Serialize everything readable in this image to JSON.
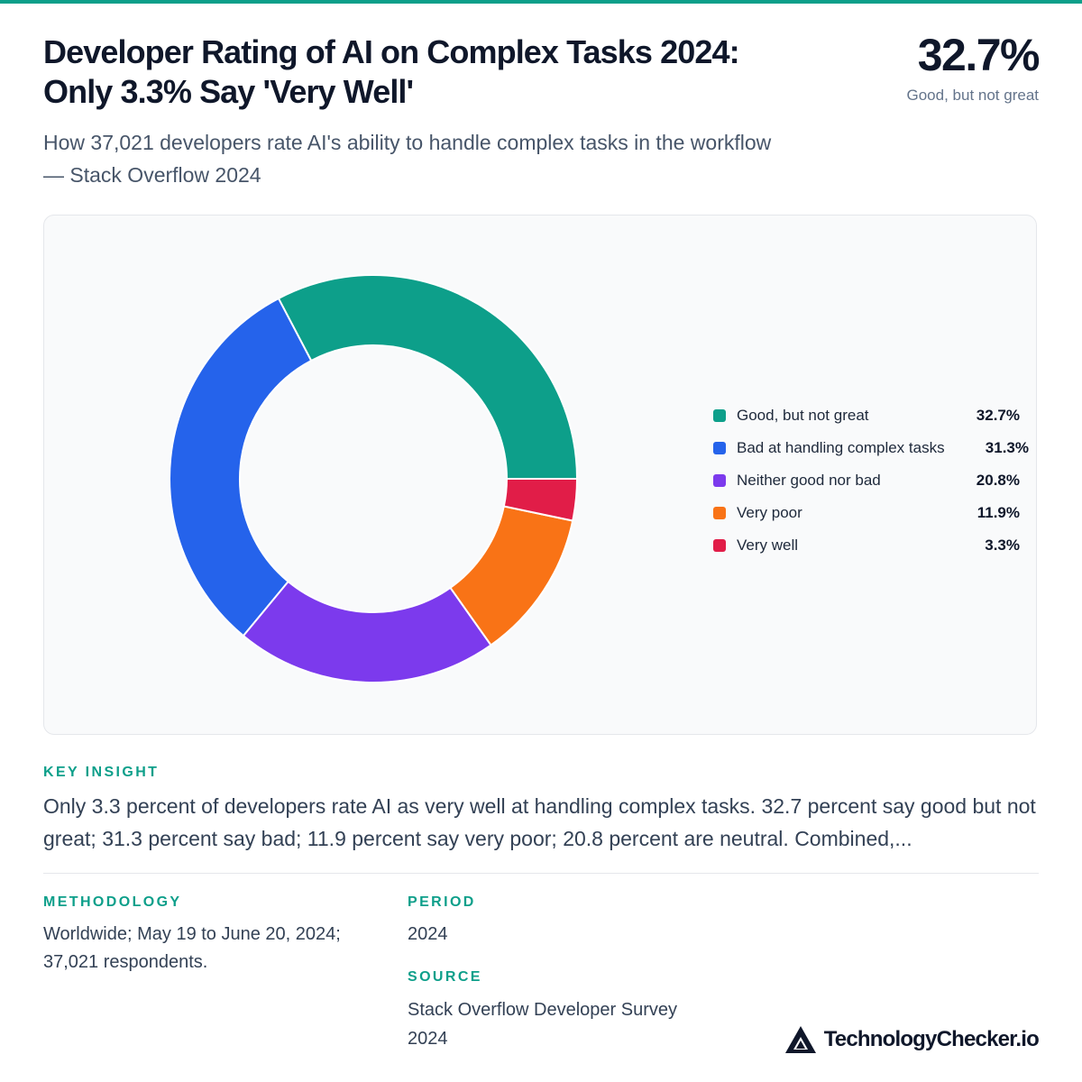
{
  "header": {
    "title_line1": "Developer Rating of AI on Complex Tasks 2024:",
    "title_line2": "Only 3.3% Say 'Very Well'",
    "subtitle": "How 37,021 developers rate AI's ability to handle complex tasks in the workflow — Stack Overflow 2024",
    "headline_value": "32.7%",
    "headline_label": "Good, but not great"
  },
  "chart_data": {
    "type": "pie",
    "donut": true,
    "unit": "%",
    "categories": [
      "Good, but not great",
      "Bad at handling complex tasks",
      "Neither good nor bad",
      "Very poor",
      "Very well"
    ],
    "values": [
      32.7,
      31.3,
      20.8,
      11.9,
      3.3
    ],
    "colors": [
      "#0d9f8a",
      "#2563eb",
      "#7c3aed",
      "#f97316",
      "#e11d48"
    ],
    "legend": [
      {
        "label": "Good, but not great",
        "value": "32.7%",
        "color": "#0d9f8a"
      },
      {
        "label": "Bad at handling complex tasks",
        "value": "31.3%",
        "color": "#2563eb"
      },
      {
        "label": "Neither good nor bad",
        "value": "20.8%",
        "color": "#7c3aed"
      },
      {
        "label": "Very poor",
        "value": "11.9%",
        "color": "#f97316"
      },
      {
        "label": "Very well",
        "value": "3.3%",
        "color": "#e11d48"
      }
    ],
    "legend_position": "right"
  },
  "insight": {
    "label": "KEY INSIGHT",
    "text": "Only 3.3 percent of developers rate AI as very well at handling complex tasks. 32.7 percent say good but not great; 31.3 percent say bad; 11.9 percent say very poor; 20.8 percent are neutral. Combined,..."
  },
  "methodology": {
    "label": "METHODOLOGY",
    "text": "Worldwide; May 19 to June 20, 2024; 37,021 respondents."
  },
  "period": {
    "label": "PERIOD",
    "text": "2024"
  },
  "source": {
    "label": "SOURCE",
    "text": "Stack Overflow Developer Survey 2024"
  },
  "brand": {
    "name": "TechnologyChecker.io",
    "logo_icon": "triangle-logo-icon"
  }
}
